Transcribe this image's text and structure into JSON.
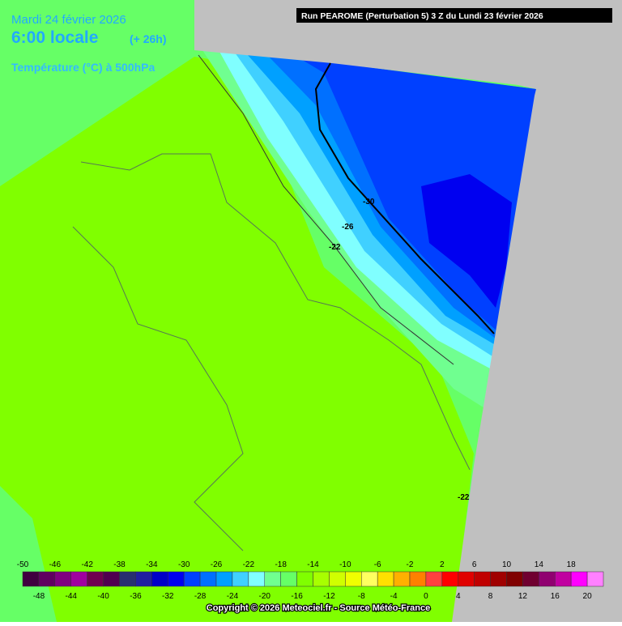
{
  "header": {
    "date": "Mardi 24 février 2026",
    "time": "6:00 locale",
    "lead": "(+ 26h)",
    "variable": "Température (°C) à 500hPa"
  },
  "run_title": "Run PEAROME (Perturbation 5) 3 Z du Lundi 23 février 2026",
  "contour_labels": [
    "-30",
    "-26",
    "-22",
    "-22"
  ],
  "legend": {
    "colors": [
      "#400040",
      "#600060",
      "#800080",
      "#a000a0",
      "#700050",
      "#500050",
      "#283070",
      "#2020a0",
      "#0000c8",
      "#0000f0",
      "#0040ff",
      "#0070ff",
      "#00a0ff",
      "#40d0ff",
      "#80ffff",
      "#70ff90",
      "#66ff66",
      "#80ff00",
      "#a8ff00",
      "#d0ff00",
      "#f0ff00",
      "#ffff60",
      "#ffe000",
      "#ffb000",
      "#ff8000",
      "#ff4040",
      "#ff0000",
      "#e00000",
      "#c00000",
      "#a00000",
      "#800000",
      "#700030",
      "#900070",
      "#c000a0",
      "#ff00ff",
      "#ff80ff"
    ],
    "top_labels": [
      -50,
      -46,
      -42,
      -38,
      -34,
      -30,
      -26,
      -22,
      -18,
      -14,
      -10,
      -6,
      -2,
      2,
      6,
      10,
      14,
      18
    ],
    "bottom_labels": [
      -48,
      -44,
      -40,
      -36,
      -32,
      -28,
      -24,
      -20,
      -16,
      -12,
      -8,
      -4,
      0,
      4,
      8,
      12,
      16,
      20
    ]
  },
  "copyright": "Copyright © 2026 Meteociel.fr - Source Météo-France"
}
